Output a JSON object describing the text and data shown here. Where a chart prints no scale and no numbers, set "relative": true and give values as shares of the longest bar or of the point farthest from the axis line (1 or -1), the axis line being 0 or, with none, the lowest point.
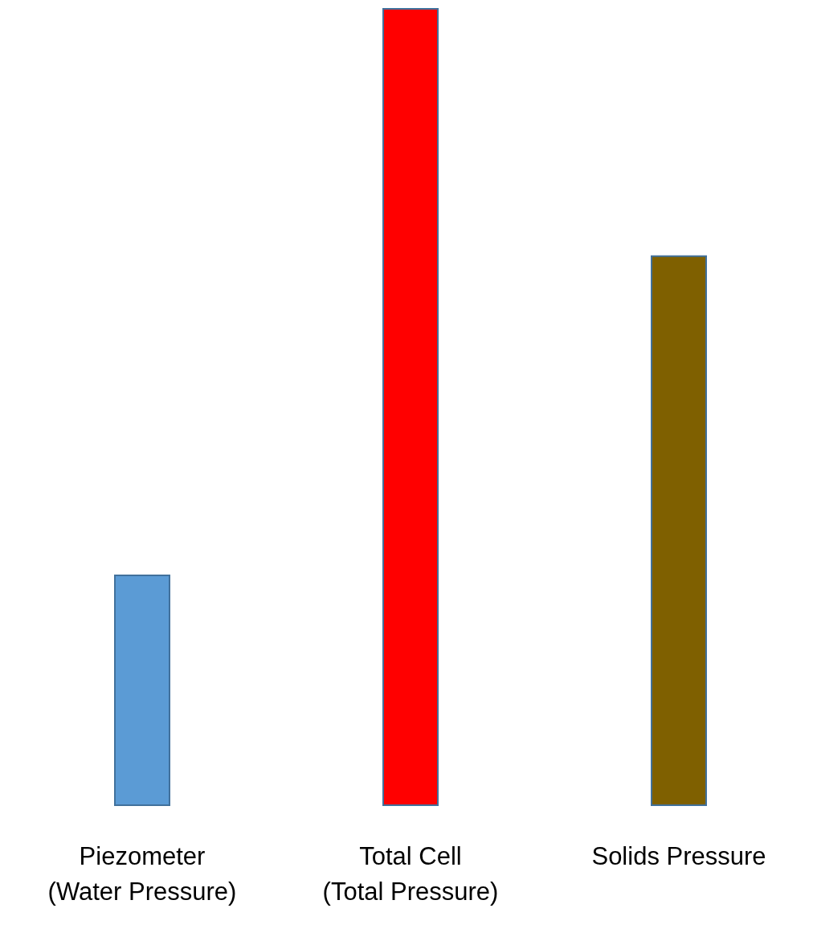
{
  "chart_data": {
    "type": "bar",
    "relative": true,
    "categories": [
      "Piezometer\n(Water Pressure)",
      "Total Cell\n(Total Pressure)",
      "Solids Pressure"
    ],
    "values": [
      0.29,
      1,
      0.69
    ],
    "colors": [
      "#5b9bd5",
      "#ff0000",
      "#7f6000"
    ]
  }
}
